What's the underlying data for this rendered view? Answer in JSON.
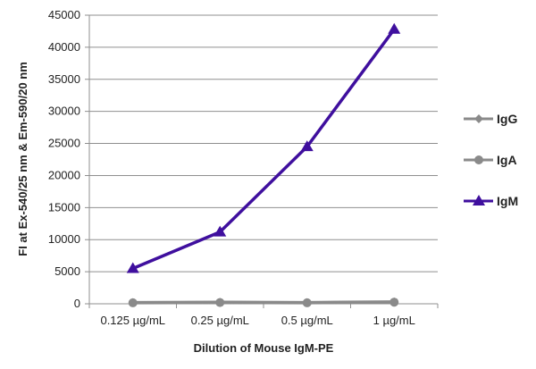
{
  "chart_data": {
    "type": "line",
    "title": "",
    "xlabel": "Dilution of Mouse IgM-PE",
    "ylabel": "FI at Ex-540/25 nm & Em-590/20 nm",
    "categories": [
      "0.125 µg/mL",
      "0.25 µg/mL",
      "0.5 µg/mL",
      "1 µg/mL"
    ],
    "ylim": [
      0,
      45000
    ],
    "yticks": [
      0,
      5000,
      10000,
      15000,
      20000,
      25000,
      30000,
      35000,
      40000,
      45000
    ],
    "grid": true,
    "legend": "right",
    "series": [
      {
        "name": "IgG",
        "values": [
          200,
          250,
          200,
          300
        ],
        "color": "#8a8a8a",
        "marker": "diamond"
      },
      {
        "name": "IgA",
        "values": [
          150,
          200,
          150,
          250
        ],
        "color": "#8a8a8a",
        "marker": "circle"
      },
      {
        "name": "IgM",
        "values": [
          5500,
          11200,
          24500,
          42800
        ],
        "color": "#3f0f9e",
        "marker": "triangle"
      }
    ]
  }
}
